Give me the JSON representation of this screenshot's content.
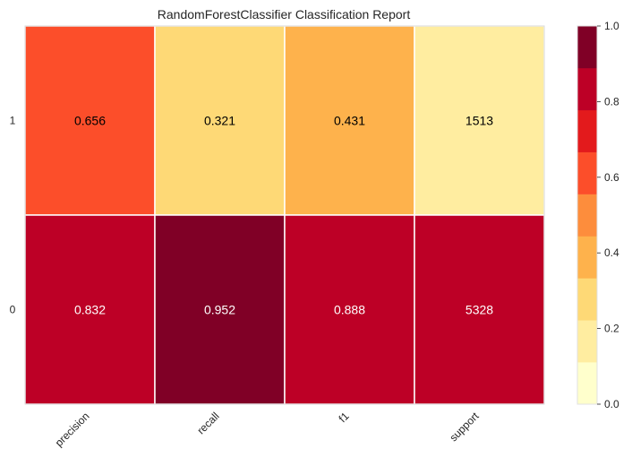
{
  "chart_data": {
    "type": "heatmap",
    "title": "RandomForestClassifier Classification Report",
    "xlabel": "",
    "ylabel": "",
    "columns": [
      "precision",
      "recall",
      "f1",
      "support"
    ],
    "rows": [
      {
        "label": "1",
        "values": [
          0.656,
          0.321,
          0.431,
          1513
        ],
        "labels": [
          "0.656",
          "0.321",
          "0.431",
          "1513"
        ],
        "color_values": [
          0.656,
          0.321,
          0.431,
          0.15
        ]
      },
      {
        "label": "0",
        "values": [
          0.832,
          0.952,
          0.888,
          5328
        ],
        "labels": [
          "0.832",
          "0.952",
          "0.888",
          "5328"
        ],
        "color_values": [
          0.832,
          0.952,
          0.888,
          0.832
        ]
      }
    ],
    "colorbar": {
      "min": 0.0,
      "max": 1.0,
      "ticks": [
        "0.0",
        "0.2",
        "0.4",
        "0.6",
        "0.8",
        "1.0"
      ],
      "bins": [
        "#ffffcc",
        "#ffeda0",
        "#fed976",
        "#feb24c",
        "#fd8d3c",
        "#fc4e2a",
        "#e31a1c",
        "#bd0026",
        "#800026"
      ]
    },
    "grid": false,
    "colormap": "YlOrRd"
  }
}
